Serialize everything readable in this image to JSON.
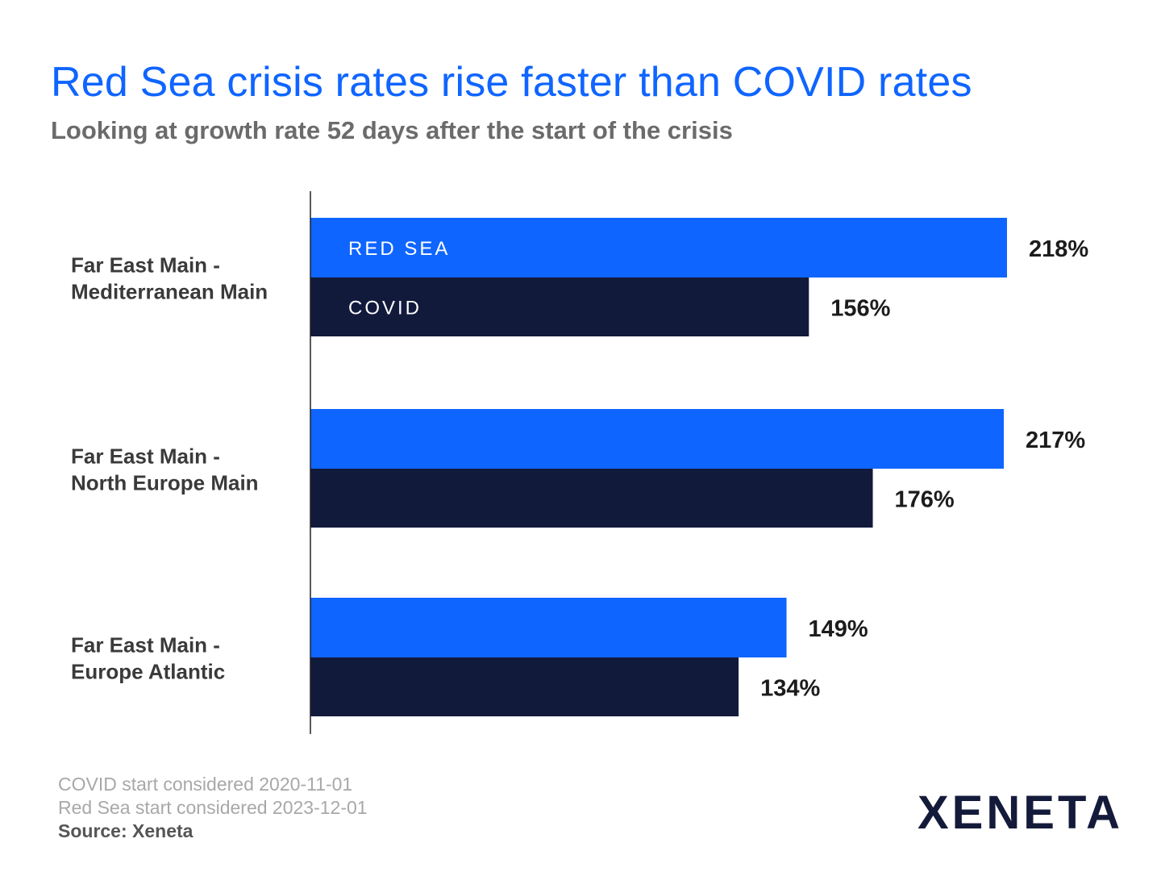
{
  "header": {
    "title": "Red Sea crisis rates rise faster than COVID rates",
    "subtitle": "Looking at growth rate 52 days after the start of the crisis"
  },
  "chart_data": {
    "type": "bar",
    "orientation": "horizontal",
    "categories": [
      [
        "Far East Main -",
        "Mediterranean Main"
      ],
      [
        "Far East Main -",
        "North Europe Main"
      ],
      [
        "Far East Main -",
        "Europe Atlantic"
      ]
    ],
    "series": [
      {
        "name": "RED SEA",
        "color": "#0f65ff",
        "values": [
          218,
          217,
          149
        ],
        "labels": [
          "218%",
          "217%",
          "149%"
        ]
      },
      {
        "name": "COVID",
        "color": "#121a3c",
        "values": [
          156,
          176,
          134
        ],
        "labels": [
          "156%",
          "176%",
          "134%"
        ]
      }
    ],
    "unit": "%",
    "xlim": [
      0,
      218
    ],
    "legend": "inside-bars",
    "grid": false
  },
  "footer": {
    "notes": [
      "COVID start considered 2020-11-01",
      "Red Sea start considered 2023-12-01"
    ],
    "source": "Source: Xeneta",
    "logo_text": "XENETA"
  },
  "colors": {
    "accent": "#0f65ff",
    "navy": "#121a3c"
  }
}
